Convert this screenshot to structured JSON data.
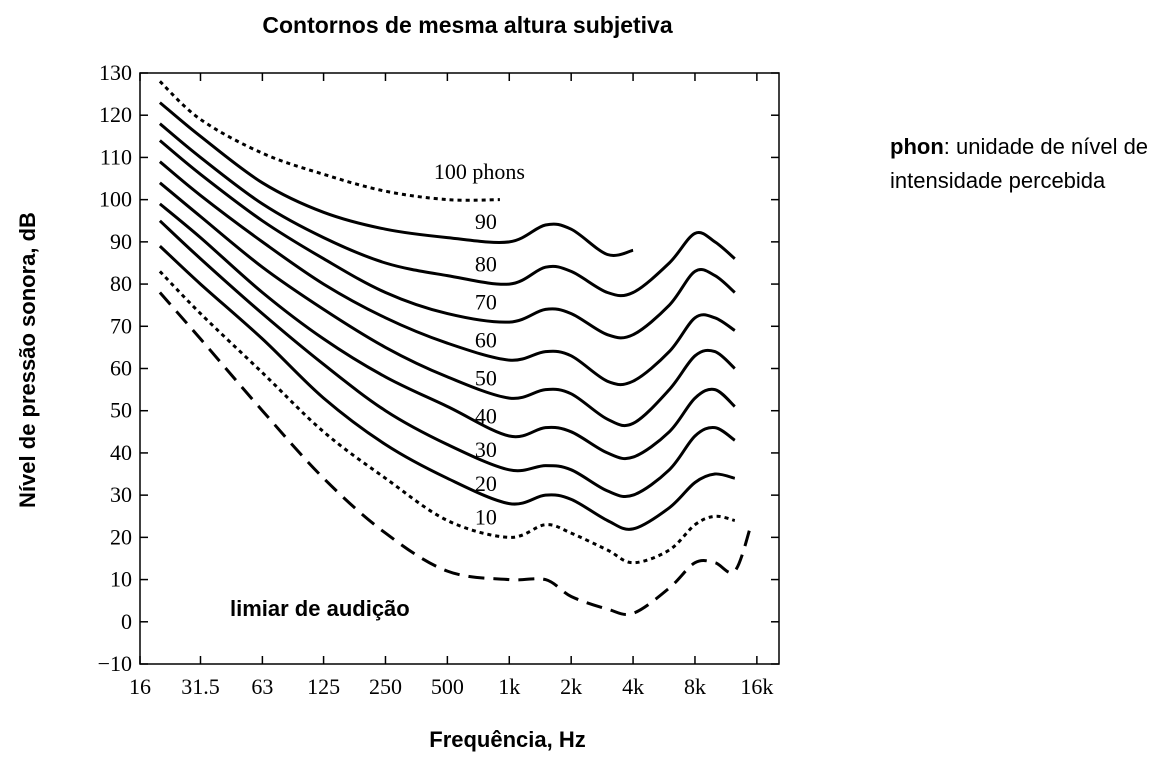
{
  "chart_data": {
    "type": "line",
    "title": "Contornos de mesma altura subjetiva",
    "xlabel": "Frequência, Hz",
    "ylabel": "Nível de pressão sonora, dB",
    "x_scale": "log",
    "x_ticks": [
      16,
      31.5,
      63,
      125,
      250,
      500,
      1000,
      2000,
      4000,
      8000,
      16000
    ],
    "x_tick_labels": [
      "16",
      "31.5",
      "63",
      "125",
      "250",
      "500",
      "1k",
      "2k",
      "4k",
      "8k",
      "16k"
    ],
    "ylim": [
      -10,
      130
    ],
    "y_ticks": [
      -10,
      0,
      10,
      20,
      30,
      40,
      50,
      60,
      70,
      80,
      90,
      100,
      110,
      120,
      130
    ],
    "y_tick_labels": [
      "−10",
      "0",
      "10",
      "20",
      "30",
      "40",
      "50",
      "60",
      "70",
      "80",
      "90",
      "100",
      "110",
      "120",
      "130"
    ],
    "grid": false,
    "series": [
      {
        "name": "100 phons",
        "style": "dotted",
        "x": [
          20,
          31.5,
          63,
          125,
          250,
          500,
          900
        ],
        "y": [
          128,
          119,
          111,
          106,
          102,
          100,
          100
        ]
      },
      {
        "name": "90",
        "style": "solid",
        "x": [
          20,
          31.5,
          63,
          125,
          250,
          500,
          1000,
          1500,
          2000,
          3000,
          4000
        ],
        "y": [
          123,
          115,
          104,
          97,
          93,
          91,
          90,
          94,
          93,
          87,
          88
        ]
      },
      {
        "name": "80",
        "style": "solid",
        "x": [
          20,
          31.5,
          63,
          125,
          250,
          500,
          1000,
          1500,
          2000,
          3000,
          4000,
          6000,
          8000,
          10000,
          12500
        ],
        "y": [
          118,
          110,
          99,
          91,
          85,
          82,
          80,
          84,
          83,
          78,
          78,
          85,
          92,
          90,
          86
        ]
      },
      {
        "name": "70",
        "style": "solid",
        "x": [
          20,
          31.5,
          63,
          125,
          250,
          500,
          1000,
          1500,
          2000,
          3000,
          4000,
          6000,
          8000,
          10000,
          12500
        ],
        "y": [
          114,
          106,
          95,
          86,
          78,
          73,
          71,
          74,
          73,
          68,
          68,
          75,
          83,
          82,
          78
        ]
      },
      {
        "name": "60",
        "style": "solid",
        "x": [
          20,
          31.5,
          63,
          125,
          250,
          500,
          1000,
          1500,
          2000,
          3000,
          4000,
          6000,
          8000,
          10000,
          12500
        ],
        "y": [
          109,
          101,
          90,
          80,
          72,
          66,
          62,
          64,
          63,
          57,
          57,
          64,
          72,
          72,
          69
        ]
      },
      {
        "name": "50",
        "style": "solid",
        "x": [
          20,
          31.5,
          63,
          125,
          250,
          500,
          1000,
          1500,
          2000,
          3000,
          4000,
          6000,
          8000,
          10000,
          12500
        ],
        "y": [
          104,
          96,
          84,
          74,
          65,
          58,
          53,
          55,
          54,
          48,
          47,
          55,
          63,
          64,
          60
        ]
      },
      {
        "name": "40",
        "style": "solid",
        "x": [
          20,
          31.5,
          63,
          125,
          250,
          500,
          1000,
          1500,
          2000,
          3000,
          4000,
          6000,
          8000,
          10000,
          12500
        ],
        "y": [
          99,
          91,
          78,
          67,
          58,
          51,
          44,
          46,
          45,
          40,
          39,
          45,
          53,
          55,
          51
        ]
      },
      {
        "name": "30",
        "style": "solid",
        "x": [
          20,
          31.5,
          63,
          125,
          250,
          500,
          1000,
          1500,
          2000,
          3000,
          4000,
          6000,
          8000,
          10000,
          12500
        ],
        "y": [
          95,
          86,
          73,
          61,
          50,
          42,
          36,
          37,
          36,
          31,
          30,
          36,
          44,
          46,
          43
        ]
      },
      {
        "name": "20",
        "style": "solid",
        "x": [
          20,
          31.5,
          63,
          125,
          250,
          500,
          1000,
          1500,
          2000,
          3000,
          4000,
          6000,
          8000,
          10000,
          12500
        ],
        "y": [
          89,
          80,
          67,
          53,
          42,
          34,
          28,
          30,
          29,
          24,
          22,
          27,
          33,
          35,
          34
        ]
      },
      {
        "name": "10",
        "style": "dotted",
        "x": [
          20,
          31.5,
          63,
          125,
          250,
          500,
          1000,
          1500,
          2000,
          3000,
          4000,
          6000,
          8000,
          10000,
          12500
        ],
        "y": [
          83,
          73,
          59,
          45,
          34,
          24,
          20,
          23,
          21,
          17,
          14,
          17,
          23,
          25,
          24
        ]
      },
      {
        "name": "limiar de audição",
        "style": "dashed",
        "x": [
          20,
          31.5,
          63,
          125,
          250,
          500,
          1000,
          1500,
          2000,
          3000,
          4000,
          6000,
          8000,
          10000,
          12500,
          15000
        ],
        "y": [
          78,
          67,
          50,
          34,
          21,
          12,
          10,
          10,
          6,
          3,
          2,
          8,
          14,
          14,
          12,
          23
        ]
      }
    ],
    "phon_labels": [
      "100 phons",
      "90",
      "80",
      "70",
      "60",
      "50",
      "40",
      "30",
      "20",
      "10"
    ],
    "annotations": [
      "limiar de audição"
    ]
  },
  "note": {
    "term": "phon",
    "rest": ": unidade de nível de intensidade percebida"
  }
}
